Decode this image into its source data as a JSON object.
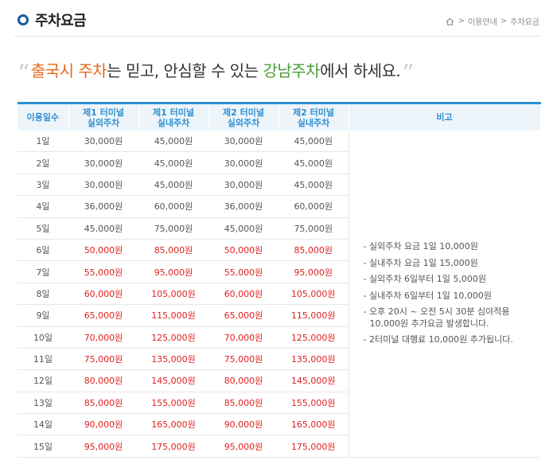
{
  "header": {
    "title": "주차요금",
    "breadcrumb": [
      "이용안내",
      ">",
      "주차요금"
    ],
    "breadcrumb_sep": ">"
  },
  "slogan": {
    "part1": "출국시 주차",
    "part2": "는 믿고, 안심할 수 있는 ",
    "part3": "강남주차",
    "part4": "에서 하세요."
  },
  "table": {
    "headers": [
      {
        "line1": "이용일수",
        "line2": ""
      },
      {
        "line1": "제1 터미널",
        "line2": "실외주차"
      },
      {
        "line1": "제1 터미널",
        "line2": "실내주차"
      },
      {
        "line1": "제2 터미널",
        "line2": "실외주차"
      },
      {
        "line1": "제2 터미널",
        "line2": "실내주차"
      },
      {
        "line1": "비고",
        "line2": ""
      }
    ],
    "rows": [
      {
        "day": "1일",
        "t1_out": "30,000원",
        "t1_in": "45,000원",
        "t2_out": "30,000원",
        "t2_in": "45,000원",
        "highlight": false
      },
      {
        "day": "2일",
        "t1_out": "30,000원",
        "t1_in": "45,000원",
        "t2_out": "30,000원",
        "t2_in": "45,000원",
        "highlight": false
      },
      {
        "day": "3일",
        "t1_out": "30,000원",
        "t1_in": "45,000원",
        "t2_out": "30,000원",
        "t2_in": "45,000원",
        "highlight": false
      },
      {
        "day": "4일",
        "t1_out": "36,000원",
        "t1_in": "60,000원",
        "t2_out": "36,000원",
        "t2_in": "60,000원",
        "highlight": false
      },
      {
        "day": "5일",
        "t1_out": "45,000원",
        "t1_in": "75,000원",
        "t2_out": "45,000원",
        "t2_in": "75,000원",
        "highlight": false
      },
      {
        "day": "6일",
        "t1_out": "50,000원",
        "t1_in": "85,000원",
        "t2_out": "50,000원",
        "t2_in": "85,000원",
        "highlight": true
      },
      {
        "day": "7일",
        "t1_out": "55,000원",
        "t1_in": "95,000원",
        "t2_out": "55,000원",
        "t2_in": "95,000원",
        "highlight": true
      },
      {
        "day": "8일",
        "t1_out": "60,000원",
        "t1_in": "105,000원",
        "t2_out": "60,000원",
        "t2_in": "105,000원",
        "highlight": true
      },
      {
        "day": "9일",
        "t1_out": "65,000원",
        "t1_in": "115,000원",
        "t2_out": "65,000원",
        "t2_in": "115,000원",
        "highlight": true
      },
      {
        "day": "10일",
        "t1_out": "70,000원",
        "t1_in": "125,000원",
        "t2_out": "70,000원",
        "t2_in": "125,000원",
        "highlight": true
      },
      {
        "day": "11일",
        "t1_out": "75,000원",
        "t1_in": "135,000원",
        "t2_out": "75,000원",
        "t2_in": "135,000원",
        "highlight": true
      },
      {
        "day": "12일",
        "t1_out": "80,000원",
        "t1_in": "145,000원",
        "t2_out": "80,000원",
        "t2_in": "145,000원",
        "highlight": true
      },
      {
        "day": "13일",
        "t1_out": "85,000원",
        "t1_in": "155,000원",
        "t2_out": "85,000원",
        "t2_in": "155,000원",
        "highlight": true
      },
      {
        "day": "14일",
        "t1_out": "90,000원",
        "t1_in": "165,000원",
        "t2_out": "90,000원",
        "t2_in": "165,000원",
        "highlight": true
      },
      {
        "day": "15일",
        "t1_out": "95,000원",
        "t1_in": "175,000원",
        "t2_out": "95,000원",
        "t2_in": "175,000원",
        "highlight": true
      }
    ],
    "notes": [
      "- 실외주차 요금 1일 10,000원",
      "- 실내주차 요금 1일 15,000원",
      "- 실외주차 6일부터 1일 5,000원",
      "- 실내주차 6일부터 1일 10,000원",
      "- 오후 20시 ~ 오전 5시 30분 심야적용",
      "10,000원 추가요금 발생합니다.",
      "- 2터미널 대행료 10,000원 추가됩니다."
    ]
  },
  "colors": {
    "accent": "#2f8fd0",
    "highlight_text": "#e02020",
    "slogan_orange": "#e46a1b",
    "slogan_green": "#4b9b3a",
    "title_icon": "#1a5aa3"
  },
  "icons": [
    "title-ring-icon",
    "home-icon"
  ]
}
